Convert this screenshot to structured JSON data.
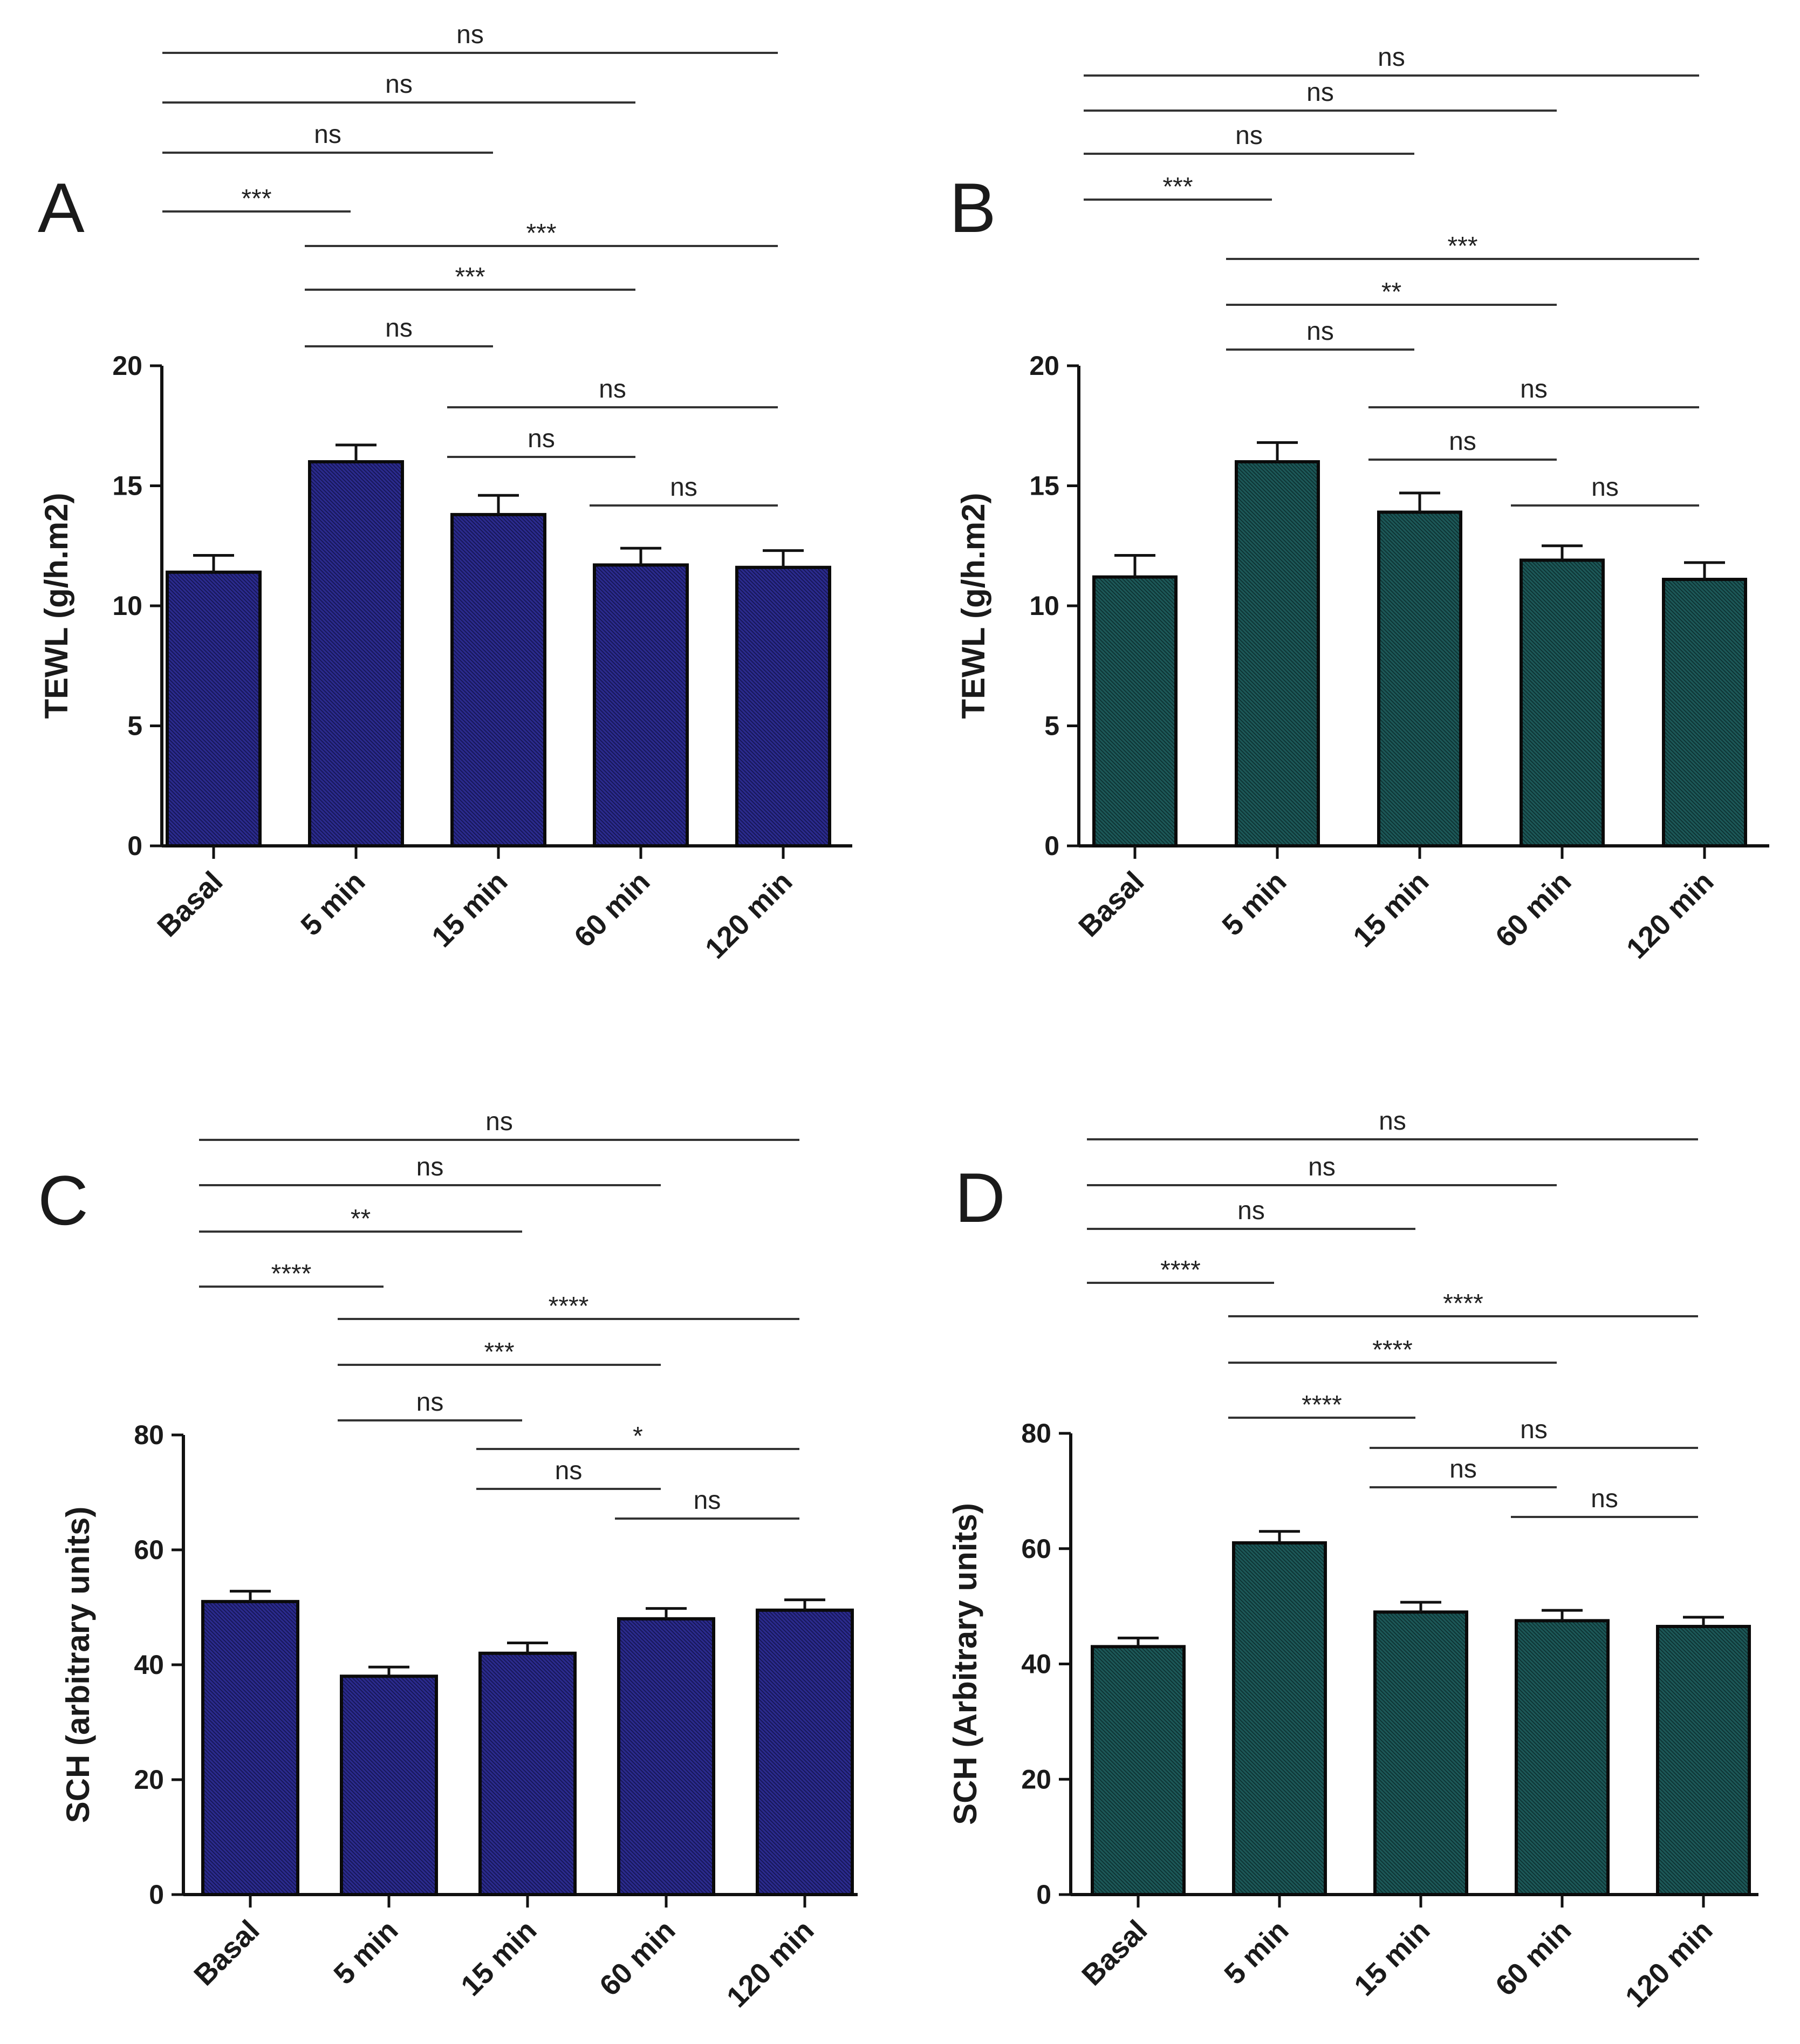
{
  "chart_data": [
    {
      "panel": "A",
      "type": "bar",
      "categories": [
        "Basal",
        "5  min",
        "15 min",
        "60 min",
        "120 min"
      ],
      "values": [
        11.4,
        16.0,
        13.8,
        11.7,
        11.6
      ],
      "errors": [
        0.7,
        0.7,
        0.8,
        0.7,
        0.7
      ],
      "ylabel": "TEWL (g/h.m2)",
      "ylim": [
        0,
        20
      ],
      "yticks": [
        0,
        5,
        10,
        15,
        20
      ],
      "bar_color": "#2a2a8c",
      "significance": [
        {
          "from": 0,
          "to": 4,
          "label": "ns"
        },
        {
          "from": 0,
          "to": 3,
          "label": "ns"
        },
        {
          "from": 0,
          "to": 2,
          "label": "ns"
        },
        {
          "from": 0,
          "to": 1,
          "label": "***"
        },
        {
          "from": 1,
          "to": 4,
          "label": "***"
        },
        {
          "from": 1,
          "to": 3,
          "label": "***"
        },
        {
          "from": 1,
          "to": 2,
          "label": "ns"
        },
        {
          "from": 2,
          "to": 4,
          "label": "ns"
        },
        {
          "from": 2,
          "to": 3,
          "label": "ns"
        },
        {
          "from": 3,
          "to": 4,
          "label": "ns"
        }
      ]
    },
    {
      "panel": "B",
      "type": "bar",
      "categories": [
        "Basal",
        "5  min",
        "15 min",
        "60 min",
        "120 min"
      ],
      "values": [
        11.2,
        16.0,
        13.9,
        11.9,
        11.1
      ],
      "errors": [
        0.9,
        0.8,
        0.8,
        0.6,
        0.7
      ],
      "ylabel": "TEWL (g/h.m2)",
      "ylim": [
        0,
        20
      ],
      "yticks": [
        0,
        5,
        10,
        15,
        20
      ],
      "bar_color": "#1c5757",
      "significance": [
        {
          "from": 0,
          "to": 4,
          "label": "ns"
        },
        {
          "from": 0,
          "to": 3,
          "label": "ns"
        },
        {
          "from": 0,
          "to": 2,
          "label": "ns"
        },
        {
          "from": 0,
          "to": 1,
          "label": "***"
        },
        {
          "from": 1,
          "to": 4,
          "label": "***"
        },
        {
          "from": 1,
          "to": 3,
          "label": "**"
        },
        {
          "from": 1,
          "to": 2,
          "label": "ns"
        },
        {
          "from": 2,
          "to": 4,
          "label": "ns"
        },
        {
          "from": 2,
          "to": 3,
          "label": "ns"
        },
        {
          "from": 3,
          "to": 4,
          "label": "ns"
        }
      ]
    },
    {
      "panel": "C",
      "type": "bar",
      "categories": [
        "Basal",
        "5  min",
        "15 min",
        "60 min",
        "120 min"
      ],
      "values": [
        51,
        38,
        42,
        48,
        49.5
      ],
      "errors": [
        1.8,
        1.6,
        1.8,
        1.8,
        1.8
      ],
      "ylabel": "SCH (arbitrary units)",
      "ylim": [
        0,
        80
      ],
      "yticks": [
        0,
        20,
        40,
        60,
        80
      ],
      "bar_color": "#2a2a8c",
      "significance": [
        {
          "from": 0,
          "to": 4,
          "label": "ns"
        },
        {
          "from": 0,
          "to": 3,
          "label": "ns"
        },
        {
          "from": 0,
          "to": 2,
          "label": "**"
        },
        {
          "from": 0,
          "to": 1,
          "label": "****"
        },
        {
          "from": 1,
          "to": 4,
          "label": "****"
        },
        {
          "from": 1,
          "to": 3,
          "label": "***"
        },
        {
          "from": 1,
          "to": 2,
          "label": "ns"
        },
        {
          "from": 2,
          "to": 4,
          "label": "*"
        },
        {
          "from": 2,
          "to": 3,
          "label": "ns"
        },
        {
          "from": 3,
          "to": 4,
          "label": "ns"
        }
      ]
    },
    {
      "panel": "D",
      "type": "bar",
      "categories": [
        "Basal",
        "5  min",
        "15 min",
        "60 min",
        "120 min"
      ],
      "values": [
        43,
        61,
        49,
        47.5,
        46.5
      ],
      "errors": [
        1.5,
        2.0,
        1.7,
        1.8,
        1.6
      ],
      "ylabel": "SCH (Arbitrary units)",
      "ylim": [
        0,
        80
      ],
      "yticks": [
        0,
        20,
        40,
        60,
        80
      ],
      "bar_color": "#1c5757",
      "significance": [
        {
          "from": 0,
          "to": 4,
          "label": "ns"
        },
        {
          "from": 0,
          "to": 3,
          "label": "ns"
        },
        {
          "from": 0,
          "to": 2,
          "label": "ns"
        },
        {
          "from": 0,
          "to": 1,
          "label": "****"
        },
        {
          "from": 1,
          "to": 4,
          "label": "****"
        },
        {
          "from": 1,
          "to": 3,
          "label": "****"
        },
        {
          "from": 1,
          "to": 2,
          "label": "****"
        },
        {
          "from": 2,
          "to": 4,
          "label": "ns"
        },
        {
          "from": 2,
          "to": 3,
          "label": "ns"
        },
        {
          "from": 3,
          "to": 4,
          "label": "ns"
        }
      ]
    }
  ]
}
